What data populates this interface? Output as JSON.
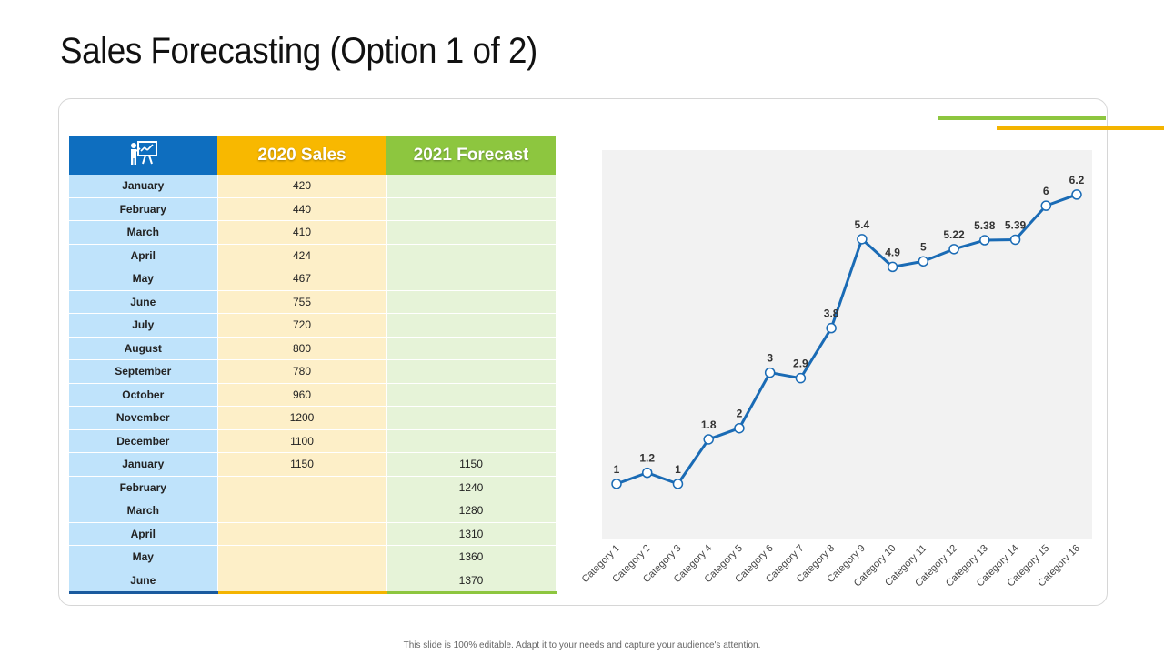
{
  "slide": {
    "title": "Sales Forecasting (Option 1 of 2)",
    "footer": "This slide is 100% editable. Adapt it to your needs and capture your audience's attention."
  },
  "colors": {
    "header_month": "#0e6ebf",
    "header_sales": "#f8b800",
    "header_forecast": "#8dc63f",
    "cell_month": "#bfe3fb",
    "cell_sales": "#fdefc8",
    "cell_forecast": "#e6f3d8",
    "accent_green": "#8dc63f",
    "accent_yellow": "#f4b400",
    "line": "#1a6bb5",
    "plot_bg": "#f2f2f2"
  },
  "table": {
    "header_icon": "presentation-board-icon",
    "columns": [
      "2020 Sales",
      "2021 Forecast"
    ],
    "rows": [
      {
        "month": "January",
        "sales": "420",
        "forecast": ""
      },
      {
        "month": "February",
        "sales": "440",
        "forecast": ""
      },
      {
        "month": "March",
        "sales": "410",
        "forecast": ""
      },
      {
        "month": "April",
        "sales": "424",
        "forecast": ""
      },
      {
        "month": "May",
        "sales": "467",
        "forecast": ""
      },
      {
        "month": "June",
        "sales": "755",
        "forecast": ""
      },
      {
        "month": "July",
        "sales": "720",
        "forecast": ""
      },
      {
        "month": "August",
        "sales": "800",
        "forecast": ""
      },
      {
        "month": "September",
        "sales": "780",
        "forecast": ""
      },
      {
        "month": "October",
        "sales": "960",
        "forecast": ""
      },
      {
        "month": "November",
        "sales": "1200",
        "forecast": ""
      },
      {
        "month": "December",
        "sales": "1100",
        "forecast": ""
      },
      {
        "month": "January",
        "sales": "1150",
        "forecast": "1150"
      },
      {
        "month": "February",
        "sales": "",
        "forecast": "1240"
      },
      {
        "month": "March",
        "sales": "",
        "forecast": "1280"
      },
      {
        "month": "April",
        "sales": "",
        "forecast": "1310"
      },
      {
        "month": "May",
        "sales": "",
        "forecast": "1360"
      },
      {
        "month": "June",
        "sales": "",
        "forecast": "1370"
      }
    ]
  },
  "chart_data": {
    "type": "line",
    "categories": [
      "Category 1",
      "Category 2",
      "Category 3",
      "Category 4",
      "Category 5",
      "Category 6",
      "Category 7",
      "Category 8",
      "Category 9",
      "Category 10",
      "Category 11",
      "Category 12",
      "Category 13",
      "Category 14",
      "Category 15",
      "Category 16"
    ],
    "series": [
      {
        "values": [
          1,
          1.2,
          1,
          1.8,
          2,
          3,
          2.9,
          3.8,
          5.4,
          4.9,
          5,
          5.22,
          5.38,
          5.39,
          6,
          6.2
        ]
      }
    ],
    "data_labels": [
      "1",
      "1.2",
      "1",
      "1.8",
      "2",
      "3",
      "2.9",
      "3.8",
      "5.4",
      "4.9",
      "5",
      "5.22",
      "5.38",
      "5.39",
      "6",
      "6.2"
    ],
    "ylim": [
      0,
      7
    ],
    "grid": false,
    "legend": "none",
    "x_tick_rotation": -45
  }
}
